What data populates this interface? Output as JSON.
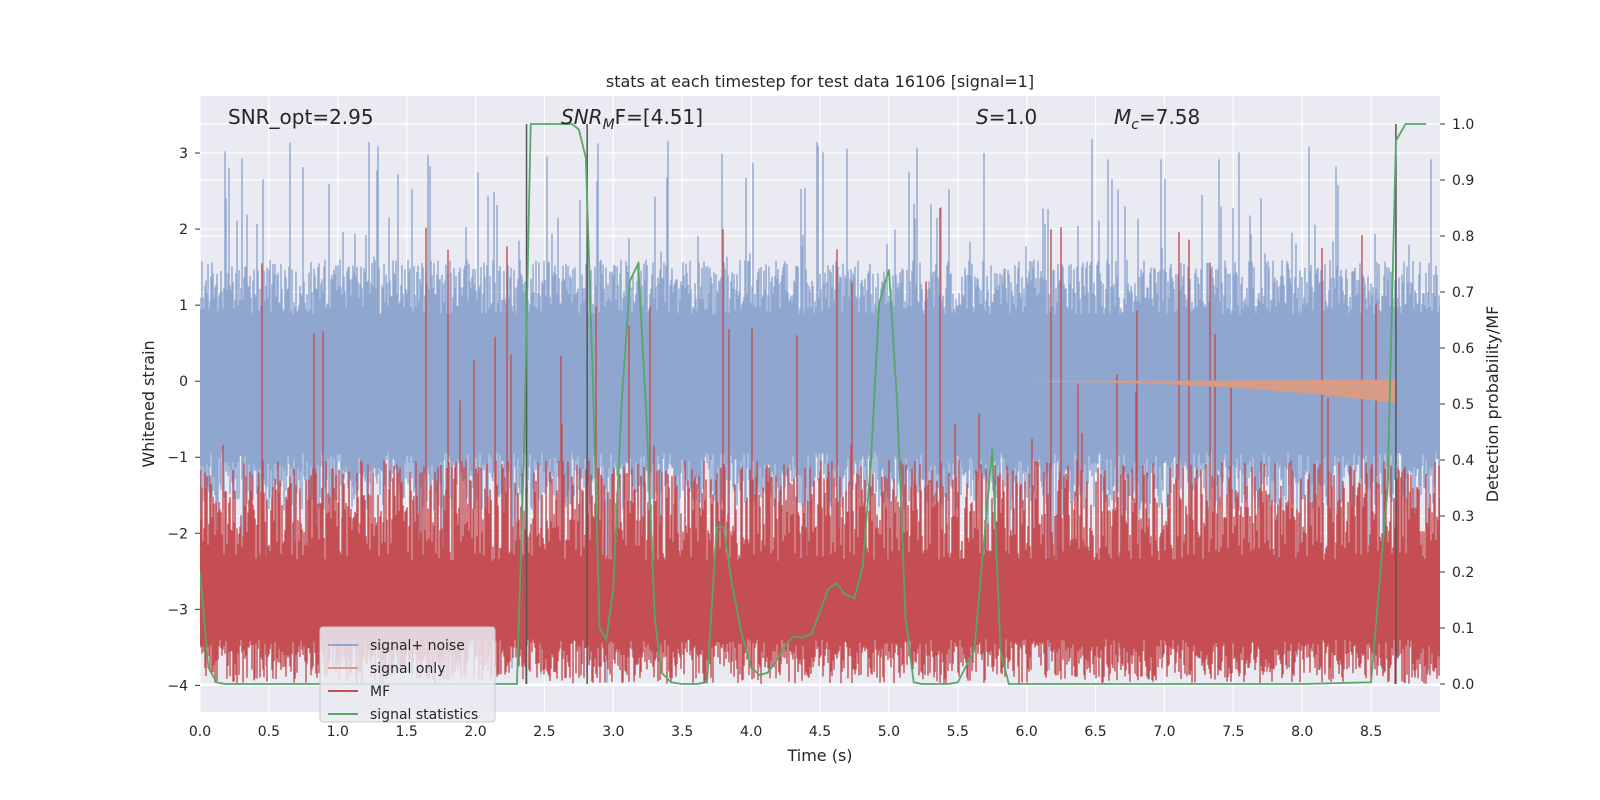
{
  "chart_data": {
    "type": "line",
    "title": "stats at each timestep for test data 16106 [signal=1]",
    "xlabel": "Time (s)",
    "ylabel_left": "Whitened strain",
    "ylabel_right": "Detection probability/MF",
    "xlim": [
      0,
      9.0
    ],
    "ylim_left": [
      -4.35,
      3.75
    ],
    "ylim_right": [
      -0.05,
      1.05
    ],
    "x_ticks": [
      0.0,
      0.5,
      1.0,
      1.5,
      2.0,
      2.5,
      3.0,
      3.5,
      4.0,
      4.5,
      5.0,
      5.5,
      6.0,
      6.5,
      7.0,
      7.5,
      8.0,
      8.5
    ],
    "x_tick_labels": [
      "0.0",
      "0.5",
      "1.0",
      "1.5",
      "2.0",
      "2.5",
      "3.0",
      "3.5",
      "4.0",
      "4.5",
      "5.0",
      "5.5",
      "6.0",
      "6.5",
      "7.0",
      "7.5",
      "8.0",
      "8.5"
    ],
    "y_ticks_left": [
      3,
      2,
      1,
      0,
      -1,
      -2,
      -3,
      -4
    ],
    "y_tick_labels_left": [
      "3",
      "2",
      "1",
      "0",
      "−1",
      "−2",
      "−3",
      "−4"
    ],
    "y_ticks_right": [
      1.0,
      0.9,
      0.8,
      0.7,
      0.6,
      0.5,
      0.4,
      0.3,
      0.2,
      0.1,
      0.0
    ],
    "y_tick_labels_right": [
      "1.0",
      "0.9",
      "0.8",
      "0.7",
      "0.6",
      "0.5",
      "0.4",
      "0.3",
      "0.2",
      "0.1",
      "0.0"
    ],
    "grid": true,
    "annotations": {
      "snr_opt": "SNR_opt=2.95",
      "snr_mf_sym": "SNR",
      "snr_mf_sub": "M",
      "snr_mf_rest": "F=[4.51]",
      "s_sym": "S",
      "s_rest": "=1.0",
      "mc_sym": "M",
      "mc_sub": "c",
      "mc_rest": "=7.58"
    },
    "legend": {
      "placement": "lower-left",
      "entries": [
        "signal+ noise",
        "signal only",
        "MF",
        "signal statistics"
      ]
    },
    "vertical_lines_x": [
      2.37,
      2.81,
      8.68
    ],
    "series": [
      {
        "name": "signal+ noise",
        "color": "#8fa6cf",
        "envelope": {
          "upper_typical": 1.6,
          "lower_typical": -1.7,
          "upper_peak": 3.3,
          "lower_peak": -4.0
        }
      },
      {
        "name": "signal only",
        "color": "#d69c86",
        "chirp": {
          "start": 6.0,
          "end": 8.68,
          "max_amplitude": 0.28
        }
      },
      {
        "name": "MF",
        "color": "#c44e52",
        "band": {
          "lower": 0.0,
          "upper_typical": 0.4,
          "upper_peak": 0.9
        }
      },
      {
        "name": "signal statistics",
        "color": "#55a868",
        "axis": "right",
        "x": [
          0.0,
          0.06,
          0.12,
          0.18,
          0.25,
          0.5,
          1.0,
          1.5,
          2.0,
          2.3,
          2.35,
          2.4,
          2.45,
          2.5,
          2.6,
          2.7,
          2.75,
          2.8,
          2.85,
          2.9,
          2.95,
          3.0,
          3.06,
          3.12,
          3.18,
          3.24,
          3.3,
          3.35,
          3.42,
          3.5,
          3.6,
          3.68,
          3.75,
          3.8,
          3.86,
          3.93,
          4.0,
          4.06,
          4.12,
          4.18,
          4.25,
          4.31,
          4.37,
          4.44,
          4.5,
          4.56,
          4.62,
          4.68,
          4.75,
          4.81,
          4.87,
          4.93,
          5.0,
          5.06,
          5.12,
          5.18,
          5.24,
          5.31,
          5.37,
          5.43,
          5.5,
          5.62,
          5.75,
          5.81,
          5.87,
          5.93,
          6.0,
          6.06,
          6.5,
          7.0,
          7.5,
          8.0,
          8.5,
          8.62,
          8.68,
          8.75,
          8.81,
          8.9
        ],
        "values": [
          0.2,
          0.03,
          0.003,
          0.0,
          0.0,
          0.0,
          0.0,
          0.0,
          0.0,
          0.0,
          0.4,
          1.0,
          1.0,
          1.0,
          1.0,
          1.0,
          0.99,
          0.94,
          0.55,
          0.1,
          0.08,
          0.17,
          0.5,
          0.72,
          0.75,
          0.48,
          0.12,
          0.02,
          0.003,
          0.0,
          0.0,
          0.003,
          0.28,
          0.28,
          0.18,
          0.09,
          0.03,
          0.016,
          0.02,
          0.04,
          0.07,
          0.085,
          0.083,
          0.09,
          0.13,
          0.17,
          0.18,
          0.16,
          0.153,
          0.21,
          0.4,
          0.68,
          0.74,
          0.5,
          0.12,
          0.003,
          0.0,
          0.0,
          0.0,
          0.0,
          0.003,
          0.06,
          0.42,
          0.06,
          0.0,
          0.0,
          0.0,
          0.0,
          0.0,
          0.0,
          0.0,
          0.0,
          0.003,
          0.35,
          0.97,
          1.0,
          1.0,
          1.0
        ]
      }
    ]
  }
}
